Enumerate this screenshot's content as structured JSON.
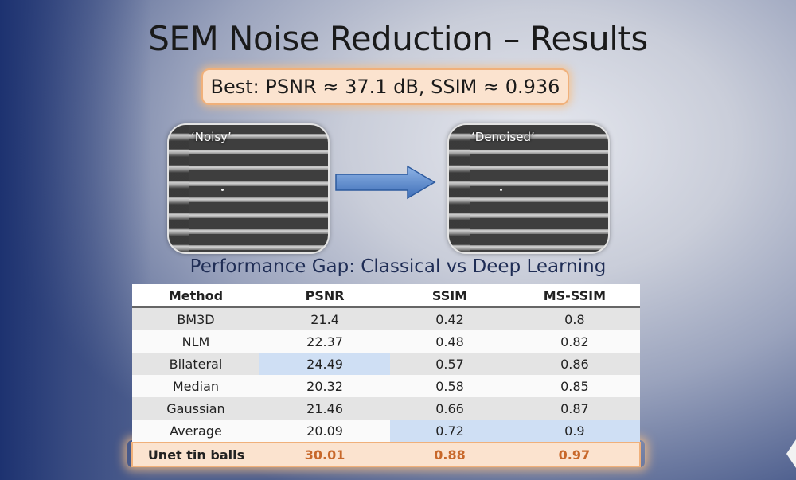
{
  "slide": {
    "title": "SEM Noise Reduction – Results",
    "best": "Best: PSNR ≈ 37.1 dB, SSIM ≈ 0.936",
    "subtitle": "Performance Gap: Classical vs Deep Learning"
  },
  "images": {
    "noisy_label": "‘Noisy’",
    "denoised_label": "‘Denoised’"
  },
  "colors": {
    "highlight_orange": "#fbe3cf",
    "highlight_blue": "#cfdff4",
    "best_text": "#c8682a"
  },
  "table": {
    "headers": [
      "Method",
      "PSNR",
      "SSIM",
      "MS-SSIM"
    ],
    "rows": [
      {
        "method": "BM3D",
        "psnr": "21.4",
        "ssim": "0.42",
        "msssim": "0.8"
      },
      {
        "method": "NLM",
        "psnr": "22.37",
        "ssim": "0.48",
        "msssim": "0.82"
      },
      {
        "method": "Bilateral",
        "psnr": "24.49",
        "ssim": "0.57",
        "msssim": "0.86"
      },
      {
        "method": "Median",
        "psnr": "20.32",
        "ssim": "0.58",
        "msssim": "0.85"
      },
      {
        "method": "Gaussian",
        "psnr": "21.46",
        "ssim": "0.66",
        "msssim": "0.87"
      },
      {
        "method": "Average",
        "psnr": "20.09",
        "ssim": "0.72",
        "msssim": "0.9"
      },
      {
        "method": "Unet tin balls",
        "psnr": "30.01",
        "ssim": "0.88",
        "msssim": "0.97"
      }
    ]
  }
}
